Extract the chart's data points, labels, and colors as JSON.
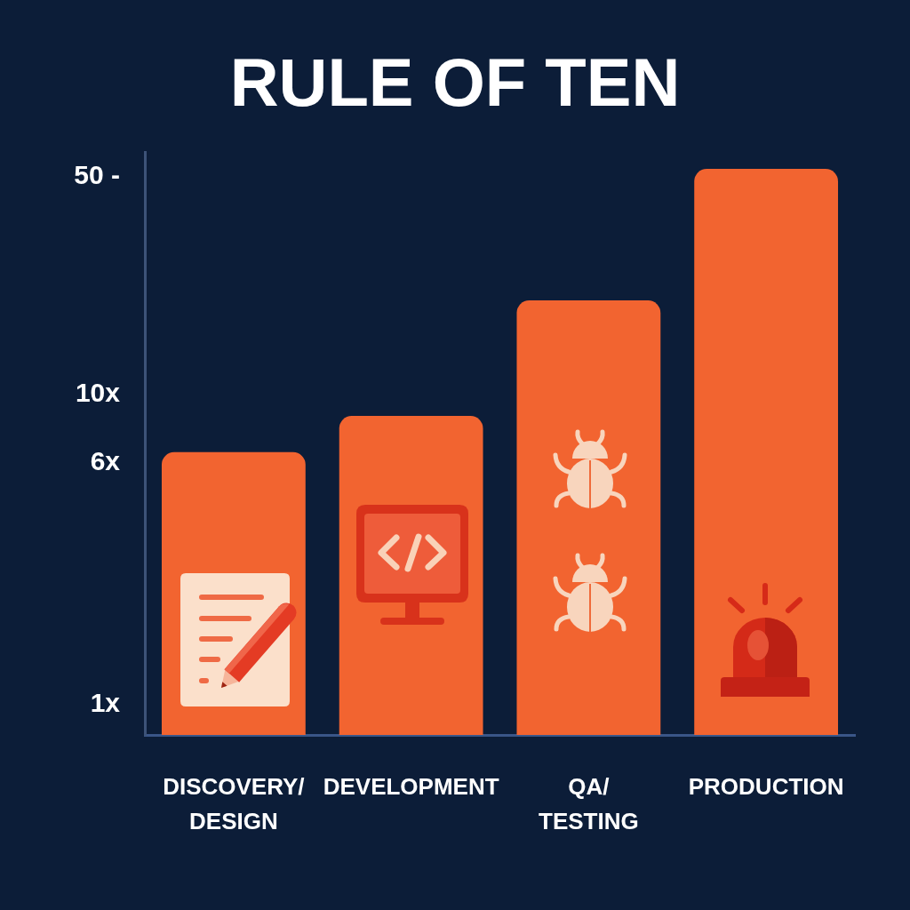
{
  "chart_data": {
    "type": "bar",
    "title": "RULE OF TEN",
    "categories": [
      "DISCOVERY/\nDESIGN",
      "DEVELOPMENT",
      "QA/\nTESTING",
      "PRODUCTION"
    ],
    "values": [
      6.5,
      8.5,
      20,
      53
    ],
    "color": "#f26430",
    "log": true,
    "ylim": [
      0.8,
      60
    ],
    "yticks": [
      {
        "value": 1,
        "label": "1x"
      },
      {
        "value": 6,
        "label": "6x"
      },
      {
        "value": 10,
        "label": "10x"
      },
      {
        "value": 50,
        "label": "50 -"
      }
    ]
  }
}
